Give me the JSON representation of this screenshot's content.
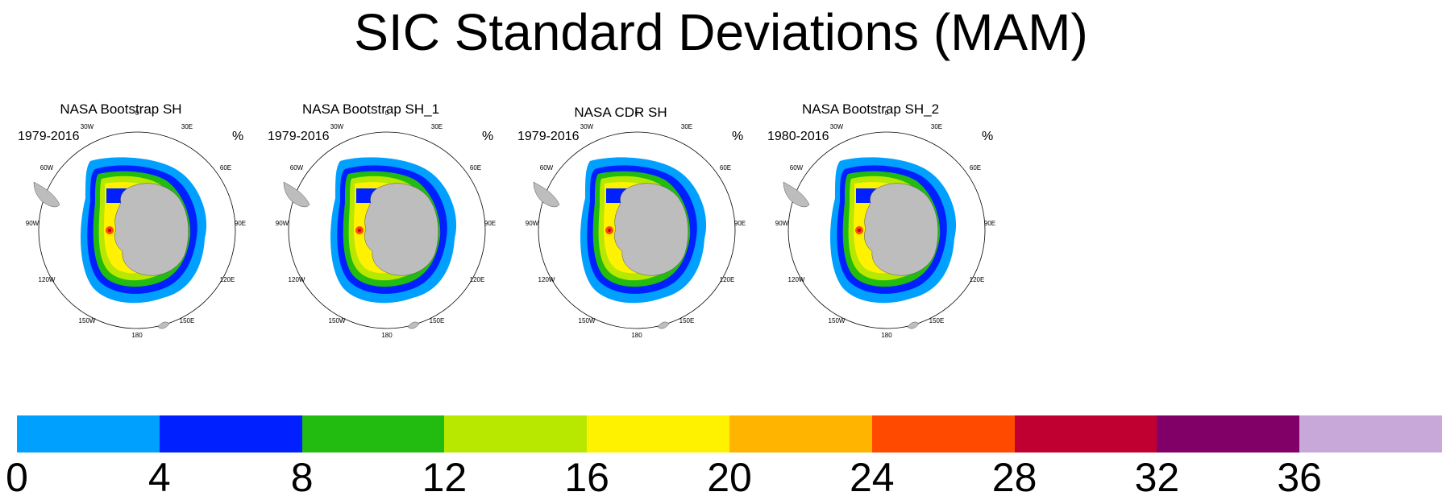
{
  "title": "SIC Standard Deviations (MAM)",
  "unit": "%",
  "panels": [
    {
      "title": "NASA Bootstrap SH",
      "period": "1979-2016"
    },
    {
      "title": "NASA Bootstrap SH_1",
      "period": "1979-2016"
    },
    {
      "title": "NASA CDR SH",
      "period": "1979-2016"
    },
    {
      "title": "NASA Bootstrap SH_2",
      "period": "1980-2016"
    }
  ],
  "longitude_labels": {
    "0": "0",
    "30E": "30E",
    "60E": "60E",
    "90E": "90E",
    "120E": "120E",
    "150E": "150E",
    "180": "180",
    "150W": "150W",
    "120W": "120W",
    "90W": "90W",
    "60W": "60W",
    "30W": "30W"
  },
  "colorbar": {
    "colors": [
      "#00a0ff",
      "#0020ff",
      "#22bb10",
      "#b8e800",
      "#fff200",
      "#ffb400",
      "#ff4a00",
      "#c00030",
      "#800068",
      "#c8a8d8"
    ],
    "labels": [
      "0",
      "4",
      "8",
      "12",
      "16",
      "20",
      "24",
      "28",
      "32",
      "36"
    ]
  }
}
